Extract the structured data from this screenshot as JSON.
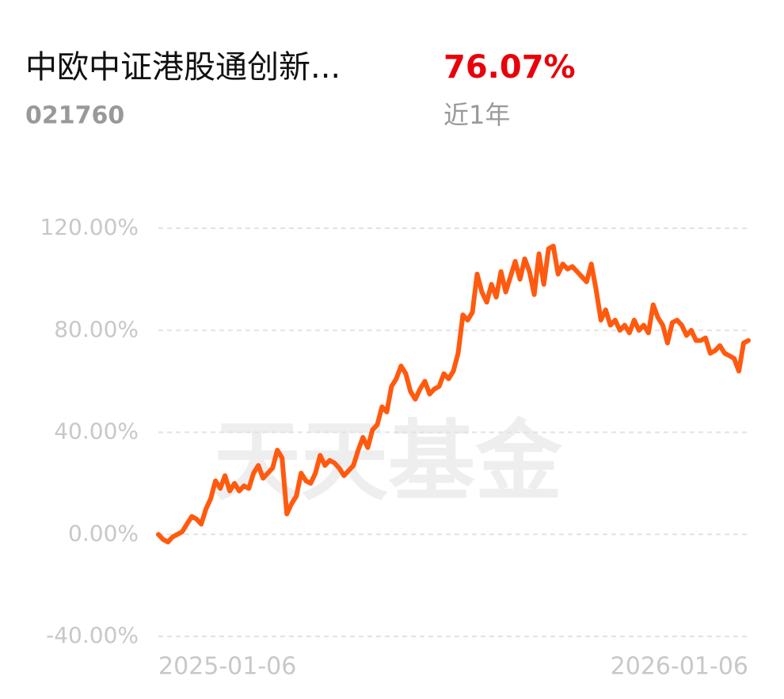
{
  "header": {
    "title": "中欧中证港股通创新...",
    "code": "021760",
    "return": "76.07%",
    "period": "近1年"
  },
  "chart_data": {
    "type": "line",
    "watermark": "天天基金",
    "categories": [
      "2025-01-06",
      null,
      null,
      null,
      null,
      null,
      null,
      null,
      null,
      null,
      null,
      null,
      null,
      null,
      null,
      null,
      null,
      null,
      null,
      null,
      null,
      null,
      null,
      null,
      null,
      null,
      null,
      null,
      null,
      null,
      null,
      null,
      null,
      null,
      null,
      null,
      null,
      null,
      null,
      null,
      null,
      null,
      null,
      null,
      null,
      null,
      null,
      null,
      null,
      null,
      null,
      null,
      null,
      null,
      null,
      null,
      null,
      null,
      null,
      null,
      null,
      null,
      null,
      null,
      null,
      null,
      null,
      null,
      null,
      null,
      null,
      null,
      null,
      null,
      null,
      null,
      null,
      null,
      null,
      null,
      null,
      null,
      null,
      null,
      null,
      null,
      null,
      null,
      null,
      null,
      null,
      null,
      null,
      null,
      null,
      null,
      null,
      null,
      null,
      null,
      null,
      null,
      null,
      null,
      null,
      null,
      null,
      null,
      null,
      null,
      null,
      null,
      null,
      null,
      null,
      null,
      null,
      null,
      null,
      null,
      null,
      null,
      null,
      null,
      "2026-01-06"
    ],
    "series": [
      {
        "color": "#ff5a0f",
        "values": [
          0,
          -2,
          -3,
          -1,
          0,
          1,
          4,
          7,
          6,
          4,
          10,
          14,
          21,
          18,
          23,
          17,
          20,
          17,
          19,
          18,
          24,
          27,
          22,
          24,
          26,
          33,
          30,
          8,
          12,
          15,
          24,
          21,
          20,
          24,
          31,
          27,
          29,
          28,
          26,
          23,
          25,
          27,
          33,
          38,
          34,
          41,
          43,
          50,
          48,
          58,
          61,
          66,
          63,
          56,
          53,
          57,
          60,
          55,
          57,
          58,
          63,
          61,
          64,
          71,
          86,
          84,
          87,
          102,
          95,
          91,
          98,
          93,
          103,
          95,
          101,
          107,
          100,
          108,
          103,
          94,
          110,
          98,
          112,
          113,
          102,
          106,
          104,
          105,
          103,
          101,
          99,
          106,
          96,
          84,
          88,
          82,
          84,
          80,
          82,
          79,
          84,
          80,
          82,
          79,
          90,
          85,
          82,
          75,
          83,
          84,
          82,
          78,
          80,
          76,
          76,
          77,
          71,
          72,
          74,
          71,
          70,
          69,
          64,
          75,
          76
        ]
      }
    ],
    "ylim": [
      -40,
      120
    ],
    "yticks": [
      {
        "value": -40,
        "label": "-40.00%"
      },
      {
        "value": 0,
        "label": "0.00%"
      },
      {
        "value": 40,
        "label": "40.00%"
      },
      {
        "value": 80,
        "label": "80.00%"
      },
      {
        "value": 120,
        "label": "120.00%"
      }
    ],
    "grid": true
  }
}
